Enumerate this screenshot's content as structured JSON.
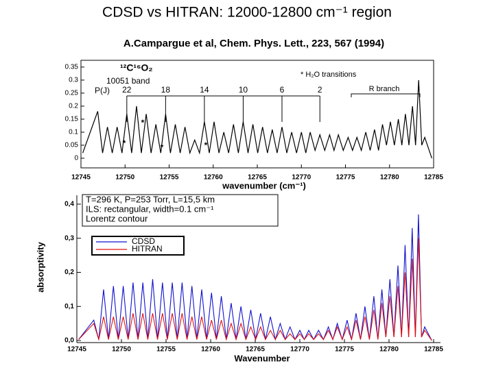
{
  "title": "CDSD vs HITRAN: 12000-12800 cm⁻¹ region",
  "subtitle": "A.Campargue et al, Chem. Phys. Lett., 223, 567 (1994)",
  "chart_data": [
    {
      "type": "line",
      "color": "#000000",
      "x_label": "wavenumber (cm⁻¹)",
      "annotations": {
        "molecule": "¹²C¹⁶O₂",
        "band": "10051 band",
        "branch_p": "P(J)",
        "j_labels": [
          22,
          18,
          14,
          10,
          6,
          2
        ],
        "h2o": "*  H₂O  transitions",
        "branch_r": "R branch",
        "star": "*"
      },
      "xlim": [
        12745,
        12785
      ],
      "xticks": [
        12745,
        12750,
        12755,
        12760,
        12765,
        12770,
        12775,
        12780,
        12785
      ],
      "ylim": [
        -0.037,
        0.376
      ],
      "yticks": [
        0,
        0.05,
        0.1,
        0.15,
        0.2,
        0.25,
        0.3,
        0.35
      ],
      "x": [
        12745.2,
        12746.9,
        12747.45,
        12748.0,
        12748.55,
        12749.1,
        12749.65,
        12750.2,
        12750.75,
        12751.3,
        12751.85,
        12752.4,
        12752.95,
        12753.5,
        12754.05,
        12754.6,
        12755.15,
        12755.7,
        12756.25,
        12756.8,
        12757.35,
        12757.9,
        12758.45,
        12759.0,
        12759.55,
        12760.1,
        12760.65,
        12761.2,
        12761.75,
        12762.3,
        12762.85,
        12763.4,
        12763.95,
        12764.5,
        12765.05,
        12765.6,
        12766.15,
        12766.7,
        12767.25,
        12767.8,
        12768.35,
        12768.9,
        12769.45,
        12770.0,
        12770.5,
        12771.0,
        12771.55,
        12772.1,
        12772.65,
        12773.2,
        12773.7,
        12774.2,
        12774.75,
        12775.3,
        12775.8,
        12776.3,
        12776.8,
        12777.3,
        12777.8,
        12778.3,
        12778.75,
        12779.2,
        12779.65,
        12780.1,
        12780.55,
        12781.0,
        12781.4,
        12781.8,
        12782.2,
        12782.6,
        12782.95,
        12783.3,
        12783.65,
        12784.0,
        12784.8
      ],
      "values": [
        0.02,
        0.18,
        0.02,
        0.12,
        0.02,
        0.12,
        0.02,
        0.17,
        0.02,
        0.2,
        0.02,
        0.17,
        0.02,
        0.13,
        0.02,
        0.17,
        0.02,
        0.13,
        0.02,
        0.12,
        0.02,
        0.07,
        0.02,
        0.14,
        0.02,
        0.14,
        0.02,
        0.1,
        0.02,
        0.13,
        0.02,
        0.14,
        0.02,
        0.13,
        0.02,
        0.12,
        0.02,
        0.11,
        0.02,
        0.12,
        0.02,
        0.1,
        0.02,
        0.1,
        0.02,
        0.1,
        0.03,
        0.09,
        0.03,
        0.09,
        0.03,
        0.09,
        0.03,
        0.08,
        0.03,
        0.08,
        0.03,
        0.1,
        0.03,
        0.11,
        0.03,
        0.13,
        0.05,
        0.14,
        0.05,
        0.15,
        0.05,
        0.17,
        0.05,
        0.2,
        0.05,
        0.3,
        0.05,
        0.08,
        0.0
      ]
    },
    {
      "type": "line",
      "x_label": "Wavenumber",
      "y_label": "absorptivity",
      "conditions": [
        "T=296 K, P=253 Torr, L=15,5 km",
        "ILS: rectangular, width=0.1 cm⁻¹",
        "Lorentz contour"
      ],
      "xlim": [
        12745,
        12785
      ],
      "xticks": [
        12745,
        12750,
        12755,
        12760,
        12765,
        12770,
        12775,
        12780,
        12785
      ],
      "ylim": [
        -0.006,
        0.426
      ],
      "yticks": [
        {
          "value": 0,
          "label": "0,0"
        },
        {
          "value": 0.1,
          "label": "0,1"
        },
        {
          "value": 0.2,
          "label": "0,2"
        },
        {
          "value": 0.3,
          "label": "0,3"
        },
        {
          "value": 0.4,
          "label": "0,4"
        }
      ],
      "x": [
        12745.2,
        12746.9,
        12747.45,
        12748.0,
        12748.55,
        12749.1,
        12749.65,
        12750.2,
        12750.75,
        12751.3,
        12751.85,
        12752.4,
        12752.95,
        12753.5,
        12754.05,
        12754.6,
        12755.15,
        12755.7,
        12756.25,
        12756.8,
        12757.35,
        12757.9,
        12758.45,
        12759.0,
        12759.55,
        12760.1,
        12760.65,
        12761.2,
        12761.75,
        12762.3,
        12762.85,
        12763.4,
        12763.95,
        12764.5,
        12765.05,
        12765.6,
        12766.15,
        12766.7,
        12767.25,
        12767.8,
        12768.35,
        12768.9,
        12769.45,
        12770.0,
        12770.5,
        12771.0,
        12771.55,
        12772.1,
        12772.65,
        12773.2,
        12773.7,
        12774.2,
        12774.75,
        12775.3,
        12775.8,
        12776.3,
        12776.8,
        12777.3,
        12777.8,
        12778.3,
        12778.75,
        12779.2,
        12779.65,
        12780.1,
        12780.55,
        12781.0,
        12781.4,
        12781.8,
        12782.2,
        12782.6,
        12782.95,
        12783.3,
        12783.65,
        12784.0,
        12784.8
      ],
      "series": [
        {
          "name": "CDSD",
          "color": "#1010d0",
          "values": [
            0.003,
            0.06,
            0.003,
            0.15,
            0.003,
            0.16,
            0.003,
            0.16,
            0.003,
            0.17,
            0.003,
            0.17,
            0.003,
            0.18,
            0.003,
            0.17,
            0.003,
            0.17,
            0.003,
            0.17,
            0.003,
            0.16,
            0.003,
            0.15,
            0.003,
            0.14,
            0.003,
            0.13,
            0.003,
            0.11,
            0.003,
            0.1,
            0.003,
            0.09,
            0.003,
            0.08,
            0.003,
            0.07,
            0.003,
            0.05,
            0.003,
            0.04,
            0.003,
            0.03,
            0.003,
            0.03,
            0.003,
            0.03,
            0.003,
            0.04,
            0.003,
            0.05,
            0.003,
            0.06,
            0.003,
            0.08,
            0.003,
            0.1,
            0.003,
            0.13,
            0.003,
            0.15,
            0.01,
            0.18,
            0.01,
            0.22,
            0.01,
            0.28,
            0.01,
            0.33,
            0.01,
            0.37,
            0.01,
            0.04,
            0.0
          ]
        },
        {
          "name": "HITRAN",
          "color": "#e01010",
          "values": [
            0.003,
            0.05,
            0.003,
            0.07,
            0.003,
            0.07,
            0.003,
            0.07,
            0.003,
            0.08,
            0.003,
            0.08,
            0.003,
            0.08,
            0.003,
            0.08,
            0.003,
            0.08,
            0.003,
            0.08,
            0.003,
            0.07,
            0.003,
            0.07,
            0.003,
            0.06,
            0.003,
            0.06,
            0.003,
            0.05,
            0.003,
            0.05,
            0.003,
            0.04,
            0.003,
            0.04,
            0.003,
            0.03,
            0.003,
            0.03,
            0.003,
            0.02,
            0.003,
            0.02,
            0.003,
            0.02,
            0.003,
            0.02,
            0.003,
            0.03,
            0.003,
            0.04,
            0.003,
            0.04,
            0.003,
            0.06,
            0.003,
            0.07,
            0.003,
            0.09,
            0.003,
            0.11,
            0.01,
            0.13,
            0.01,
            0.16,
            0.01,
            0.2,
            0.01,
            0.24,
            0.01,
            0.3,
            0.01,
            0.03,
            0.0
          ]
        }
      ]
    }
  ]
}
